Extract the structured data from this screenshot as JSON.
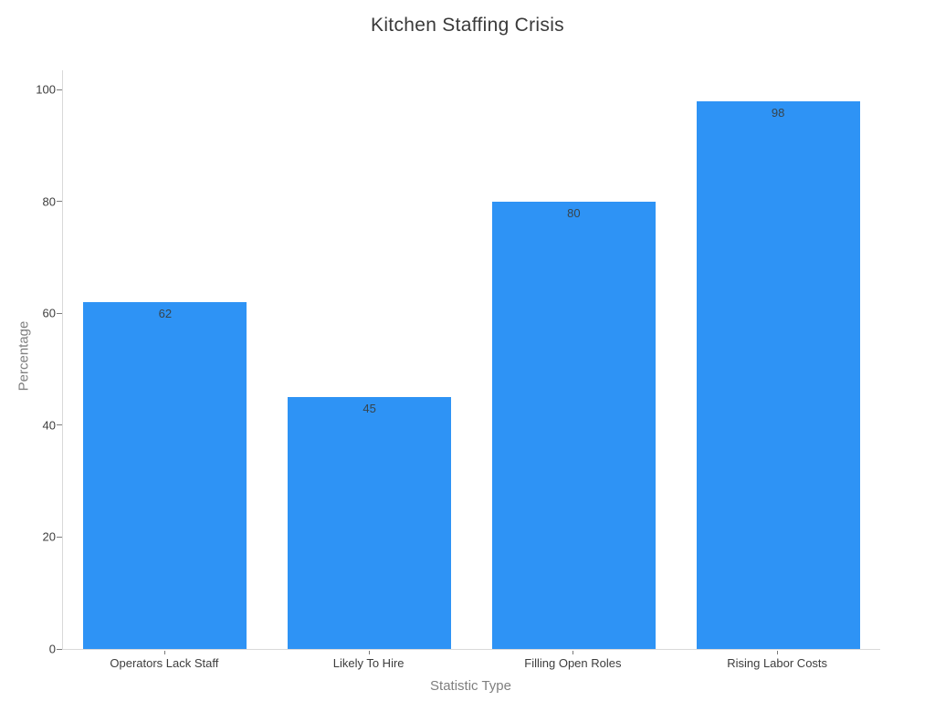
{
  "chart_data": {
    "type": "bar",
    "title": "Kitchen Staffing Crisis",
    "xlabel": "Statistic Type",
    "ylabel": "Percentage",
    "categories": [
      "Operators Lack Staff",
      "Likely To Hire",
      "Filling Open Roles",
      "Rising Labor Costs"
    ],
    "values": [
      62,
      45,
      80,
      98
    ],
    "bar_labels": [
      "62",
      "45",
      "80",
      "98"
    ],
    "yticks": [
      0,
      20,
      40,
      60,
      80,
      100
    ],
    "ylim": [
      0,
      103.5
    ],
    "bar_width_fraction": 0.8,
    "grid": false,
    "legend": "none",
    "colors": {
      "bar": "#2e93f5",
      "title_text": "#3a3a3a",
      "tick_text": "#3d3d3d",
      "axis_label_text": "#7f7f7f",
      "bar_value_text": "#37444c",
      "spine": "#d9d9d9",
      "tick_mark": "#7a7a7a",
      "background": "#ffffff"
    }
  }
}
